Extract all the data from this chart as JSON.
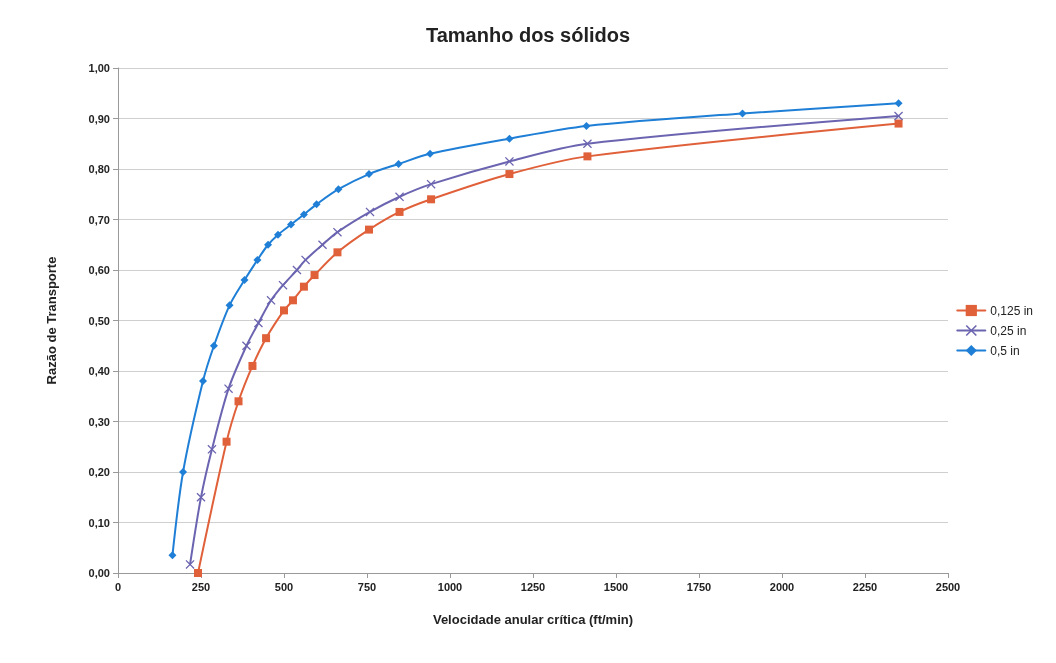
{
  "chart_data": {
    "type": "line",
    "title": "Tamanho dos sólidos",
    "xlabel": "Velocidade anular crítica (ft/min)",
    "ylabel": "Razão de Transporte",
    "xlim": [
      0,
      2500
    ],
    "xticks": [
      0,
      250,
      500,
      750,
      1000,
      1250,
      1500,
      1750,
      2000,
      2250,
      2500
    ],
    "ylim": [
      0,
      1
    ],
    "yticks": [
      {
        "value": 0,
        "label": "0,00"
      },
      {
        "value": 0.1,
        "label": "0,10"
      },
      {
        "value": 0.2,
        "label": "0,20"
      },
      {
        "value": 0.3,
        "label": "0,30"
      },
      {
        "value": 0.4,
        "label": "0,40"
      },
      {
        "value": 0.5,
        "label": "0,50"
      },
      {
        "value": 0.6,
        "label": "0,60"
      },
      {
        "value": 0.7,
        "label": "0,70"
      },
      {
        "value": 0.8,
        "label": "0,80"
      },
      {
        "value": 0.9,
        "label": "0,90"
      },
      {
        "value": 1,
        "label": "1,00"
      }
    ],
    "grid": "y",
    "legend": "right",
    "series": [
      {
        "name": "0,125 in",
        "color": "#e0603a",
        "marker": "square",
        "x": [
          241,
          327,
          363,
          405,
          446,
          500,
          527,
          560,
          592,
          661,
          756,
          848,
          943,
          1179,
          1414,
          2351
        ],
        "values": [
          0,
          0.26,
          0.34,
          0.41,
          0.465,
          0.52,
          0.54,
          0.567,
          0.59,
          0.635,
          0.68,
          0.715,
          0.74,
          0.79,
          0.825,
          0.89
        ]
      },
      {
        "name": "0,25 in",
        "color": "#6b64b0",
        "marker": "cross",
        "x": [
          217,
          250,
          283,
          333,
          387,
          423,
          461,
          497,
          539,
          565,
          616,
          661,
          759,
          848,
          943,
          1179,
          1414,
          2351
        ],
        "values": [
          0.017,
          0.15,
          0.245,
          0.365,
          0.45,
          0.495,
          0.54,
          0.57,
          0.6,
          0.62,
          0.65,
          0.675,
          0.715,
          0.745,
          0.77,
          0.815,
          0.85,
          0.905
        ]
      },
      {
        "name": "0,5 in",
        "color": "#1f7fd6",
        "marker": "diamond",
        "x": [
          164,
          196,
          256,
          289,
          336,
          381,
          420,
          452,
          482,
          521,
          560,
          598,
          664,
          756,
          845,
          940,
          1179,
          1411,
          1881,
          2351
        ],
        "values": [
          0.035,
          0.2,
          0.38,
          0.45,
          0.53,
          0.58,
          0.62,
          0.65,
          0.67,
          0.69,
          0.71,
          0.73,
          0.76,
          0.79,
          0.81,
          0.83,
          0.86,
          0.885,
          0.91,
          0.93
        ]
      }
    ]
  }
}
